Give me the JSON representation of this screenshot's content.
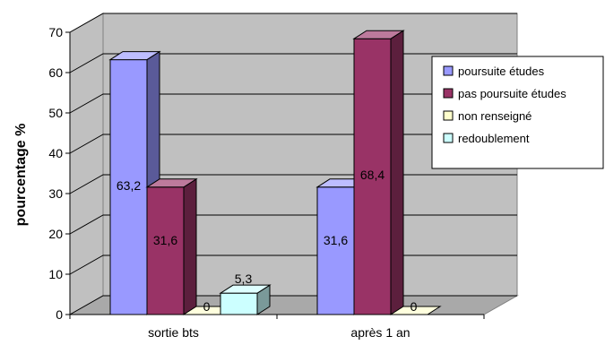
{
  "chart_data": {
    "type": "bar",
    "title": "",
    "xlabel": "",
    "ylabel": "pourcentage %",
    "ylim": [
      0,
      70
    ],
    "yticks": [
      0,
      10,
      20,
      30,
      40,
      50,
      60,
      70
    ],
    "grid": true,
    "three_d": true,
    "legend_position": "right",
    "categories": [
      "sortie bts",
      "après 1 an"
    ],
    "series": [
      {
        "name": "poursuite études",
        "values": [
          63.2,
          31.6
        ],
        "labels": [
          "63,2",
          "31,6"
        ],
        "color": "#9999ff",
        "side_color": "#5a5a99"
      },
      {
        "name": "pas poursuite études",
        "values": [
          31.6,
          68.4
        ],
        "labels": [
          "31,6",
          "68,4"
        ],
        "color": "#993366",
        "side_color": "#5c1f3d"
      },
      {
        "name": "non renseigné",
        "values": [
          0,
          0
        ],
        "labels": [
          "0",
          "0"
        ],
        "color": "#ffffcc",
        "side_color": "#999979"
      },
      {
        "name": "redoublement",
        "values": [
          5.3,
          null
        ],
        "labels": [
          "5,3",
          ""
        ],
        "color": "#ccffff",
        "side_color": "#7a9999"
      }
    ]
  }
}
